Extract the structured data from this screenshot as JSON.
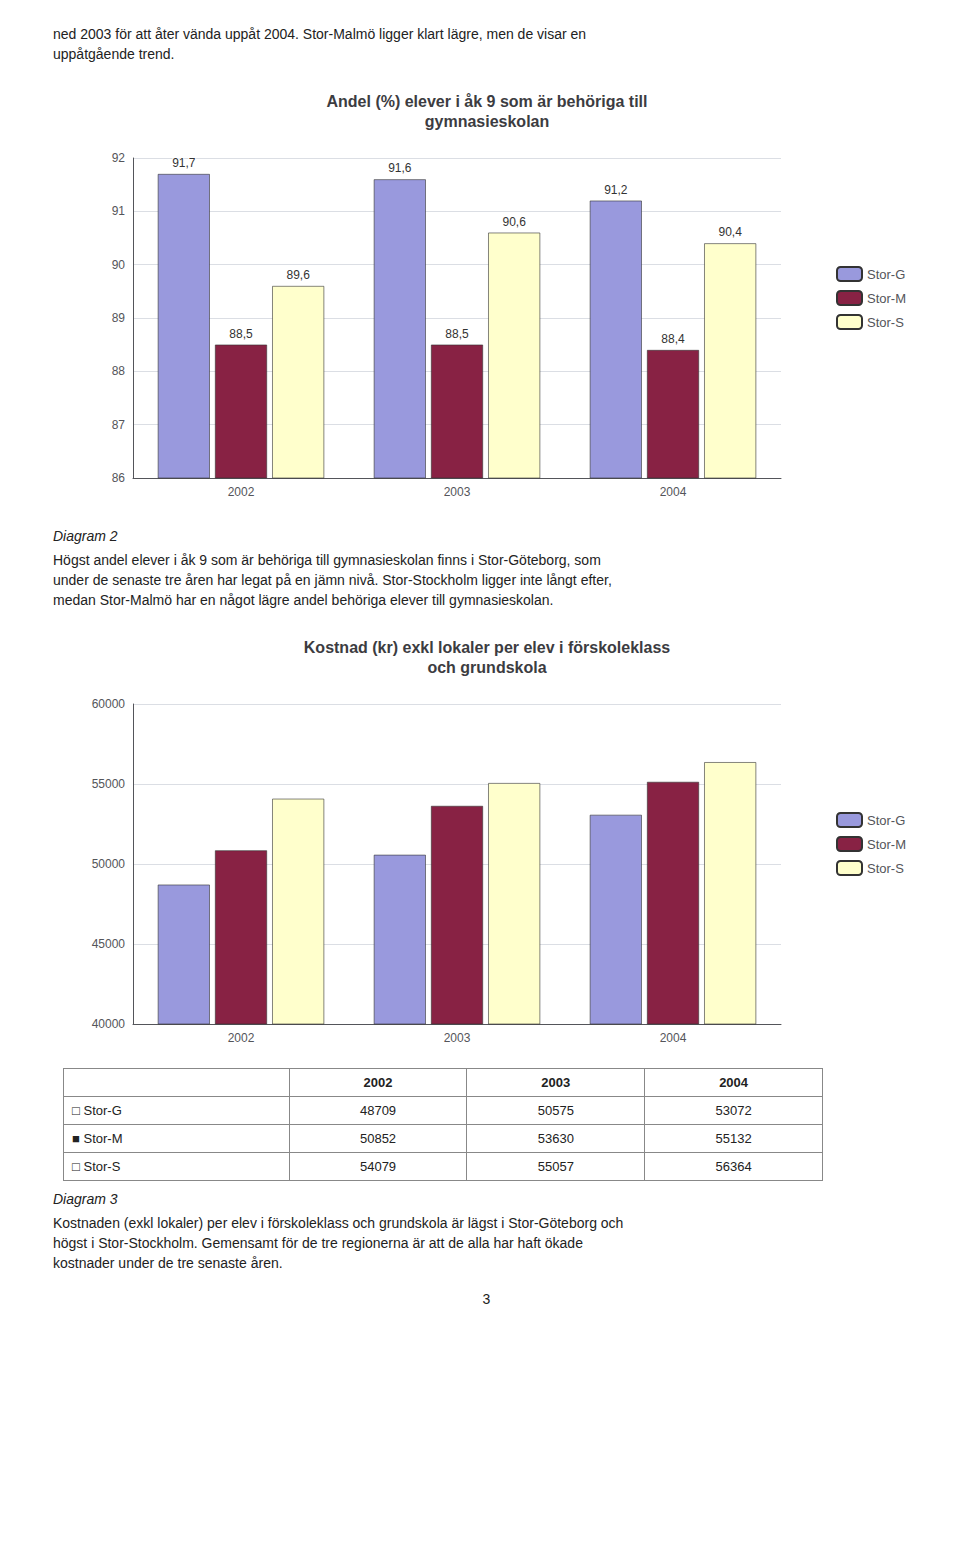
{
  "header": [
    "ned 2003 för att åter vända uppåt 2004. Stor-Malmö ligger klart lägre, men de visar en",
    "uppåtgående trend."
  ],
  "chart_data": [
    {
      "type": "bar",
      "title": "Andel (%) elever i åk 9 som är behöriga till\ngymnasieskolan",
      "categories": [
        "2002",
        "2003",
        "2004"
      ],
      "series": [
        {
          "name": "Stor-G",
          "color": "#9999DD",
          "values": [
            91.7,
            91.6,
            91.2
          ],
          "value_labels": [
            "91,7",
            "91,6",
            "91,2"
          ]
        },
        {
          "name": "Stor-M",
          "color": "#882244",
          "values": [
            88.5,
            88.5,
            88.4
          ],
          "value_labels": [
            "88,5",
            "88,5",
            "88,4"
          ]
        },
        {
          "name": "Stor-S",
          "color": "#FFFFCC",
          "values": [
            89.6,
            90.6,
            90.4
          ],
          "value_labels": [
            "89,6",
            "90,6",
            "90,4"
          ]
        }
      ],
      "ylim": [
        86,
        92
      ],
      "yticks": [
        86,
        87,
        88,
        89,
        90,
        91,
        92
      ],
      "grid": true,
      "legend": "right",
      "data_labels": true,
      "caption": "Diagram 2",
      "annotations": [
        "Högst andel elever i åk 9 som är behöriga till gymnasieskolan finns i Stor-Göteborg, som",
        "under de senaste tre åren har legat på en jämn nivå. Stor-Stockholm ligger inte långt efter,",
        "medan Stor-Malmö har en något lägre andel behöriga elever till gymnasieskolan."
      ]
    },
    {
      "type": "bar",
      "title": "Kostnad (kr) exkl lokaler per elev i förskoleklass\noch grundskola",
      "categories": [
        "2002",
        "2003",
        "2004"
      ],
      "series": [
        {
          "name": "Stor-G",
          "color": "#9999DD",
          "values": [
            48709,
            50575,
            53072
          ]
        },
        {
          "name": "Stor-M",
          "color": "#882244",
          "values": [
            50852,
            53630,
            55132
          ]
        },
        {
          "name": "Stor-S",
          "color": "#FFFFCC",
          "values": [
            54079,
            55057,
            56364
          ]
        }
      ],
      "ylim": [
        40000,
        60000
      ],
      "yticks": [
        40000,
        45000,
        50000,
        55000,
        60000
      ],
      "grid": true,
      "legend": "right",
      "data_labels": false,
      "table": {
        "columns": [
          "2002",
          "2003",
          "2004"
        ],
        "rows": [
          {
            "label": "□ Stor-G",
            "values": [
              48709,
              50575,
              53072
            ]
          },
          {
            "label": "■ Stor-M",
            "values": [
              50852,
              53630,
              55132
            ]
          },
          {
            "label": "□ Stor-S",
            "values": [
              54079,
              55057,
              56364
            ]
          }
        ]
      },
      "caption": "Diagram 3",
      "annotations": [
        "Kostnaden (exkl lokaler) per elev i förskoleklass och grundskola är lägst i Stor-Göteborg och",
        "högst i Stor-Stockholm. Gemensamt för de tre regionerna är att de alla har haft ökade",
        "kostnader under de tre senaste åren."
      ]
    }
  ],
  "page_number": "3"
}
